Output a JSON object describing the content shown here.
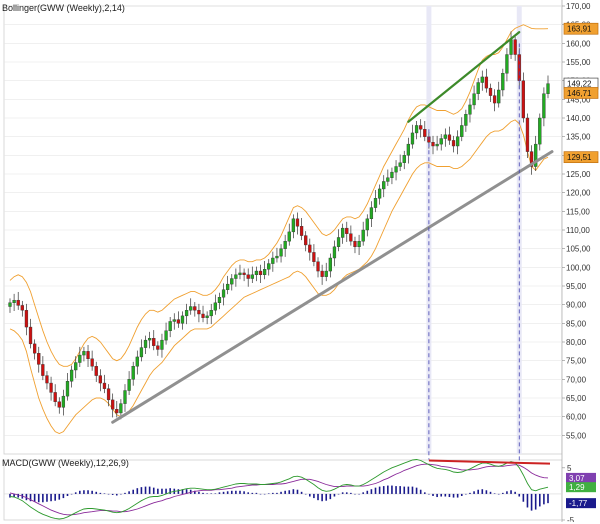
{
  "colors": {
    "up": "#22aa22",
    "down": "#cc1111",
    "band": "#f0a030",
    "trend_gray": "#909090",
    "trend_green": "#3d8a2a",
    "macd_line": "#2e9a2e",
    "signal_line": "#8a2a9a",
    "histogram": "#1a1a8c",
    "divergence": "#cc2222",
    "label_orange": "#f0a030",
    "label_purple": "#8040b0",
    "label_green": "#40b040",
    "label_blue": "#1a1a8c",
    "grid": "#e6e6e6"
  },
  "chart_data": [
    {
      "type": "candlestick",
      "title": "Bollinger(GWW (Weekly),2,14)",
      "ylim": [
        50,
        170
      ],
      "y_ticks": [
        "170,00",
        "165,00",
        "160,00",
        "155,00",
        "150,00",
        "145,00",
        "140,00",
        "135,00",
        "130,00",
        "125,00",
        "120,00",
        "115,00",
        "110,00",
        "105,00",
        "100,00",
        "95,00",
        "90,00",
        "85,00",
        "80,00",
        "75,00",
        "70,00",
        "65,00",
        "60,00",
        "55,00"
      ],
      "y_tick_values": [
        170,
        165,
        160,
        155,
        150,
        145,
        140,
        135,
        130,
        125,
        120,
        115,
        110,
        105,
        100,
        95,
        90,
        85,
        80,
        75,
        70,
        65,
        60,
        55
      ],
      "price_labels": [
        {
          "text": "163,91",
          "value": 163.91,
          "color": "#f0a030"
        },
        {
          "text": "149,22",
          "value": 149.22,
          "color": "#ffffff"
        },
        {
          "text": "146,71",
          "value": 146.71,
          "color": "#f0a030"
        },
        {
          "text": "129,51",
          "value": 129.51,
          "color": "#f0a030"
        }
      ],
      "close": [
        90.5,
        91.2,
        89.8,
        88.5,
        84.0,
        79.5,
        77.0,
        74.0,
        71.0,
        69.0,
        66.5,
        64.0,
        62.5,
        65.5,
        69.5,
        72.5,
        74.5,
        76.5,
        77.5,
        75.5,
        73.5,
        71.0,
        69.0,
        67.5,
        64.5,
        62.0,
        61.0,
        63.5,
        67.0,
        70.0,
        73.5,
        76.0,
        78.5,
        80.5,
        81.0,
        79.0,
        78.0,
        80.5,
        83.0,
        85.5,
        86.0,
        85.0,
        87.0,
        88.5,
        89.5,
        88.5,
        87.5,
        86.5,
        87.0,
        88.5,
        90.5,
        92.0,
        94.0,
        95.5,
        97.0,
        98.0,
        98.5,
        98.0,
        97.0,
        98.0,
        99.0,
        98.0,
        99.5,
        101.0,
        102.5,
        103.0,
        105.0,
        107.0,
        109.5,
        113.0,
        111.0,
        108.5,
        106.0,
        104.0,
        101.5,
        99.0,
        97.5,
        99.0,
        102.5,
        105.5,
        108.0,
        110.5,
        109.0,
        107.0,
        105.5,
        107.0,
        110.0,
        113.0,
        116.0,
        118.5,
        121.0,
        123.0,
        124.0,
        125.5,
        127.0,
        128.0,
        130.0,
        133.0,
        136.0,
        138.0,
        137.0,
        135.0,
        133.5,
        132.5,
        133.0,
        134.5,
        135.5,
        134.0,
        132.5,
        135.0,
        138.0,
        141.0,
        143.5,
        146.5,
        149.5,
        151.0,
        148.0,
        146.0,
        144.0,
        147.5,
        152.0,
        157.0,
        161.0,
        157.0,
        150.0,
        140.0,
        131.0,
        127.0,
        133.0,
        140.0,
        146.5,
        149.2
      ],
      "upper_band": [
        96.5,
        97.5,
        98.0,
        97.5,
        96.0,
        93.5,
        90.0,
        86.5,
        83.0,
        80.0,
        77.5,
        75.5,
        74.0,
        73.5,
        73.5,
        74.0,
        75.5,
        77.5,
        79.5,
        81.0,
        81.5,
        81.0,
        80.0,
        78.5,
        77.0,
        75.5,
        75.0,
        75.5,
        77.0,
        79.0,
        81.5,
        84.0,
        86.0,
        87.5,
        88.5,
        88.5,
        88.0,
        88.5,
        89.5,
        90.5,
        91.5,
        92.0,
        92.5,
        93.0,
        93.5,
        93.5,
        93.0,
        92.5,
        92.5,
        93.0,
        94.0,
        95.5,
        97.5,
        99.0,
        100.5,
        101.5,
        102.0,
        102.0,
        101.5,
        101.5,
        102.0,
        102.0,
        102.5,
        103.5,
        105.0,
        106.5,
        108.5,
        111.0,
        113.5,
        116.0,
        116.5,
        116.0,
        115.0,
        113.5,
        112.0,
        110.5,
        109.0,
        108.5,
        109.0,
        110.0,
        111.5,
        113.0,
        113.5,
        113.5,
        113.0,
        113.5,
        115.0,
        117.0,
        119.5,
        122.0,
        124.5,
        127.0,
        129.0,
        131.0,
        133.0,
        135.0,
        137.0,
        139.5,
        141.5,
        143.0,
        143.5,
        143.5,
        143.0,
        142.5,
        142.0,
        142.0,
        142.0,
        141.5,
        141.0,
        141.5,
        142.5,
        144.5,
        147.0,
        150.0,
        153.0,
        155.5,
        156.5,
        157.0,
        157.0,
        157.5,
        159.0,
        161.0,
        163.0,
        164.0,
        164.5,
        165.0,
        164.5,
        164.0,
        163.9,
        163.9,
        163.9,
        163.91
      ],
      "lower_band": [
        83.5,
        83.0,
        82.0,
        80.5,
        77.5,
        73.0,
        69.0,
        65.0,
        62.0,
        59.5,
        57.5,
        56.0,
        55.5,
        56.0,
        57.5,
        59.0,
        60.5,
        61.5,
        62.5,
        63.5,
        64.5,
        65.0,
        65.0,
        64.5,
        63.5,
        62.0,
        60.5,
        60.0,
        60.5,
        61.5,
        63.0,
        65.0,
        67.0,
        69.0,
        71.0,
        72.5,
        73.5,
        74.5,
        76.0,
        77.5,
        79.0,
        80.0,
        81.0,
        82.0,
        83.0,
        83.5,
        83.5,
        83.5,
        83.5,
        84.0,
        85.0,
        86.0,
        87.0,
        88.0,
        89.0,
        90.0,
        91.0,
        92.0,
        92.5,
        93.0,
        93.5,
        94.0,
        94.5,
        95.0,
        95.5,
        96.0,
        96.5,
        97.0,
        97.5,
        98.5,
        99.0,
        98.5,
        97.5,
        96.0,
        94.5,
        93.0,
        92.5,
        92.5,
        93.0,
        94.0,
        95.5,
        97.0,
        98.0,
        98.5,
        99.0,
        99.5,
        100.5,
        101.5,
        103.0,
        105.0,
        107.5,
        110.0,
        112.5,
        115.0,
        117.0,
        119.0,
        121.0,
        123.0,
        125.0,
        126.5,
        127.5,
        128.0,
        128.0,
        127.5,
        127.0,
        127.0,
        127.0,
        127.0,
        126.5,
        126.5,
        127.0,
        128.0,
        129.0,
        130.5,
        132.0,
        133.5,
        135.0,
        136.0,
        136.5,
        136.5,
        137.0,
        138.0,
        139.0,
        139.5,
        138.5,
        135.5,
        131.0,
        127.0,
        126.0,
        127.5,
        129.0,
        129.51
      ]
    },
    {
      "type": "line",
      "title": "MACD(GWW (Weekly),12,26,9)",
      "ylim": [
        -5,
        6.5
      ],
      "y_ticks": [
        "5",
        "-5"
      ],
      "y_tick_values": [
        5,
        -5
      ],
      "value_labels": [
        {
          "text": "3,07",
          "value": 3.07,
          "color": "#8040b0"
        },
        {
          "text": "1,29",
          "value": 1.29,
          "color": "#40b040"
        },
        {
          "text": "-1,77",
          "value": -1.77,
          "color": "#1a1a8c"
        }
      ],
      "series": [
        {
          "name": "MACD",
          "values": [
            -0.5,
            -0.6,
            -0.9,
            -1.3,
            -1.9,
            -2.5,
            -3.0,
            -3.5,
            -3.9,
            -4.2,
            -4.5,
            -4.7,
            -4.8,
            -4.7,
            -4.4,
            -4.0,
            -3.6,
            -3.2,
            -2.9,
            -2.8,
            -2.8,
            -2.9,
            -3.0,
            -3.1,
            -3.3,
            -3.5,
            -3.6,
            -3.5,
            -3.2,
            -2.8,
            -2.3,
            -1.8,
            -1.3,
            -0.9,
            -0.6,
            -0.5,
            -0.5,
            -0.3,
            0.0,
            0.3,
            0.5,
            0.6,
            0.8,
            1.0,
            1.1,
            1.1,
            1.0,
            0.9,
            0.8,
            0.8,
            0.9,
            1.1,
            1.3,
            1.5,
            1.7,
            1.9,
            2.0,
            2.0,
            1.9,
            1.9,
            1.9,
            1.8,
            1.8,
            1.9,
            2.0,
            2.1,
            2.3,
            2.6,
            2.9,
            3.3,
            3.4,
            3.2,
            2.8,
            2.3,
            1.8,
            1.2,
            0.7,
            0.5,
            0.6,
            0.9,
            1.3,
            1.7,
            1.8,
            1.7,
            1.5,
            1.5,
            1.8,
            2.2,
            2.7,
            3.2,
            3.7,
            4.2,
            4.6,
            5.0,
            5.3,
            5.6,
            5.9,
            6.2,
            6.5,
            6.6,
            6.4,
            6.0,
            5.6,
            5.2,
            4.9,
            4.8,
            4.7,
            4.5,
            4.2,
            4.1,
            4.2,
            4.5,
            4.8,
            5.2,
            5.6,
            5.9,
            5.9,
            5.7,
            5.4,
            5.3,
            5.5,
            5.9,
            6.2,
            6.0,
            5.0,
            3.6,
            2.0,
            0.8,
            0.6,
            0.9,
            1.1,
            1.29
          ]
        },
        {
          "name": "Signal",
          "values": [
            0.2,
            0.0,
            -0.2,
            -0.4,
            -0.7,
            -1.1,
            -1.5,
            -1.9,
            -2.3,
            -2.7,
            -3.1,
            -3.4,
            -3.7,
            -3.9,
            -4.0,
            -4.0,
            -3.9,
            -3.8,
            -3.6,
            -3.5,
            -3.4,
            -3.3,
            -3.2,
            -3.2,
            -3.2,
            -3.3,
            -3.3,
            -3.4,
            -3.4,
            -3.3,
            -3.1,
            -2.9,
            -2.6,
            -2.3,
            -2.0,
            -1.7,
            -1.5,
            -1.3,
            -1.0,
            -0.8,
            -0.5,
            -0.3,
            -0.1,
            0.1,
            0.3,
            0.5,
            0.6,
            0.7,
            0.7,
            0.7,
            0.8,
            0.8,
            0.9,
            1.0,
            1.1,
            1.3,
            1.4,
            1.5,
            1.6,
            1.7,
            1.7,
            1.8,
            1.8,
            1.8,
            1.8,
            1.9,
            1.9,
            2.0,
            2.2,
            2.4,
            2.6,
            2.8,
            2.8,
            2.8,
            2.6,
            2.4,
            2.1,
            1.8,
            1.6,
            1.4,
            1.4,
            1.4,
            1.5,
            1.5,
            1.5,
            1.5,
            1.5,
            1.6,
            1.8,
            2.0,
            2.3,
            2.7,
            3.0,
            3.4,
            3.8,
            4.1,
            4.5,
            4.8,
            5.1,
            5.4,
            5.6,
            5.7,
            5.7,
            5.6,
            5.5,
            5.3,
            5.2,
            5.1,
            4.9,
            4.8,
            4.6,
            4.6,
            4.6,
            4.7,
            4.8,
            5.0,
            5.2,
            5.3,
            5.3,
            5.3,
            5.3,
            5.4,
            5.5,
            5.6,
            5.5,
            5.1,
            4.6,
            4.0,
            3.6,
            3.3,
            3.1,
            3.07
          ]
        }
      ],
      "histogram": [
        -0.7,
        -0.6,
        -0.7,
        -0.9,
        -1.2,
        -1.4,
        -1.5,
        -1.6,
        -1.6,
        -1.5,
        -1.4,
        -1.3,
        -1.1,
        -0.8,
        -0.4,
        0.0,
        0.3,
        0.6,
        0.7,
        0.7,
        0.6,
        0.4,
        0.2,
        0.1,
        -0.1,
        -0.2,
        -0.3,
        -0.1,
        0.2,
        0.5,
        0.8,
        1.1,
        1.3,
        1.4,
        1.4,
        1.2,
        1.0,
        1.0,
        1.0,
        1.1,
        1.0,
        0.9,
        0.9,
        0.9,
        0.8,
        0.6,
        0.4,
        0.2,
        0.1,
        0.1,
        0.1,
        0.3,
        0.4,
        0.5,
        0.6,
        0.6,
        0.6,
        0.5,
        0.3,
        0.2,
        0.2,
        0.0,
        0.0,
        0.1,
        0.2,
        0.2,
        0.4,
        0.6,
        0.7,
        0.9,
        0.8,
        0.4,
        0.0,
        -0.5,
        -0.8,
        -1.2,
        -1.4,
        -1.3,
        -1.0,
        -0.5,
        -0.1,
        0.3,
        0.3,
        0.2,
        0.0,
        0.0,
        0.3,
        0.6,
        0.9,
        1.2,
        1.4,
        1.5,
        1.6,
        1.6,
        1.5,
        1.5,
        1.4,
        1.4,
        1.4,
        1.2,
        0.8,
        0.3,
        -0.1,
        -0.4,
        -0.6,
        -0.5,
        -0.5,
        -0.6,
        -0.7,
        -0.7,
        -0.4,
        -0.1,
        0.2,
        0.5,
        0.8,
        0.9,
        0.7,
        0.4,
        0.1,
        0.0,
        0.2,
        0.5,
        0.7,
        0.4,
        -0.5,
        -1.5,
        -2.6,
        -3.2,
        -3.0,
        -2.4,
        -2.0,
        -1.77
      ]
    }
  ]
}
